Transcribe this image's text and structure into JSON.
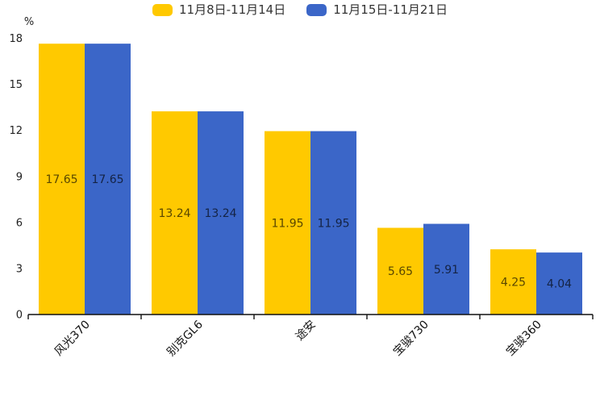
{
  "chart_data": {
    "type": "bar",
    "categories": [
      "风光370",
      "别克GL6",
      "途安",
      "宝骏730",
      "宝骏360"
    ],
    "series": [
      {
        "name": "11月8日-11月14日",
        "color": "#FFC900",
        "values": [
          17.65,
          13.24,
          11.95,
          5.65,
          4.25
        ]
      },
      {
        "name": "11月15日-11月21日",
        "color": "#3B66C8",
        "values": [
          17.65,
          13.24,
          11.95,
          5.91,
          4.04
        ]
      }
    ],
    "title": "",
    "xlabel": "",
    "ylabel": "%",
    "ylim": [
      0,
      18
    ],
    "yticks": [
      0,
      3,
      6,
      9,
      12,
      15,
      18
    ],
    "grid": false,
    "legend_position": "top",
    "value_labels": "inside-middle",
    "value_label_decimals": 2
  },
  "styles": {
    "axis_color": "#111111",
    "tick_label_color": "#222222",
    "category_label_color": "#111111",
    "value_label_color": "rgba(0,0,0,0.66)",
    "background": "#ffffff"
  }
}
